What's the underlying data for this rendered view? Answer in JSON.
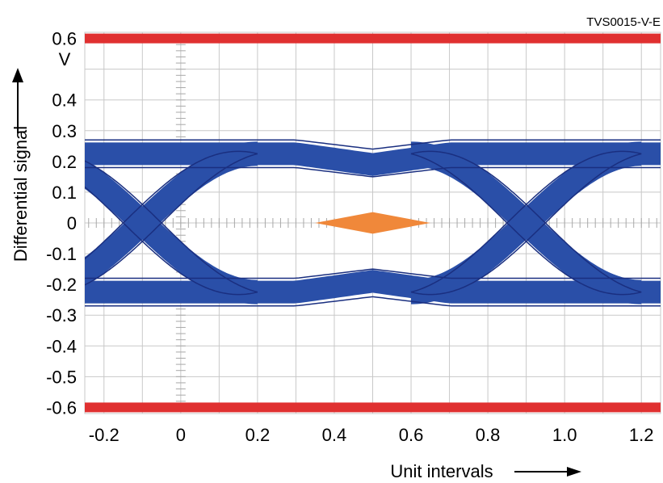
{
  "chart_data": {
    "type": "eye_diagram",
    "title": "",
    "figure_code": "TVS0015-V-E",
    "xlabel": "Unit intervals",
    "ylabel": "Differential signal",
    "yunit": "V",
    "xlim": [
      -0.25,
      1.25
    ],
    "ylim": [
      -0.62,
      0.62
    ],
    "xticks": [
      -0.2,
      0,
      0.2,
      0.4,
      0.6,
      0.8,
      1.0,
      1.2
    ],
    "xtick_labels": [
      "-0.2",
      "0",
      "0.2",
      "0.4",
      "0.6",
      "0.8",
      "1.0",
      "1.2"
    ],
    "yticks": [
      0.6,
      0.4,
      0.3,
      0.2,
      0.1,
      0,
      -0.1,
      -0.2,
      -0.3,
      -0.4,
      -0.5,
      -0.6
    ],
    "ytick_labels": [
      "0.6",
      "0.4",
      "0.3",
      "0.2",
      "0.1",
      "0",
      "-0.1",
      "-0.2",
      "-0.3",
      "-0.4",
      "-0.5",
      "-0.6"
    ],
    "grid": true,
    "limit_lines": [
      0.6,
      -0.6
    ],
    "eye": {
      "crossings_x": [
        -0.1,
        0.9
      ],
      "high_level": {
        "inner": 0.18,
        "outer": 0.27
      },
      "low_level": {
        "inner": -0.18,
        "outer": -0.27
      },
      "mid_ui": {
        "x": 0.5,
        "inner_top": 0.15,
        "outer_top": 0.24
      }
    },
    "mask": {
      "x_left": 0.35,
      "x_right": 0.65,
      "x_center": 0.5,
      "height": 0.035
    },
    "colors": {
      "limit": "#e03030",
      "eye": "#2a4fa8",
      "eye_edge": "#1a2f80",
      "mask": "#f0883a",
      "grid": "#c8c8c8",
      "ticks": "#a8a8a8"
    }
  }
}
